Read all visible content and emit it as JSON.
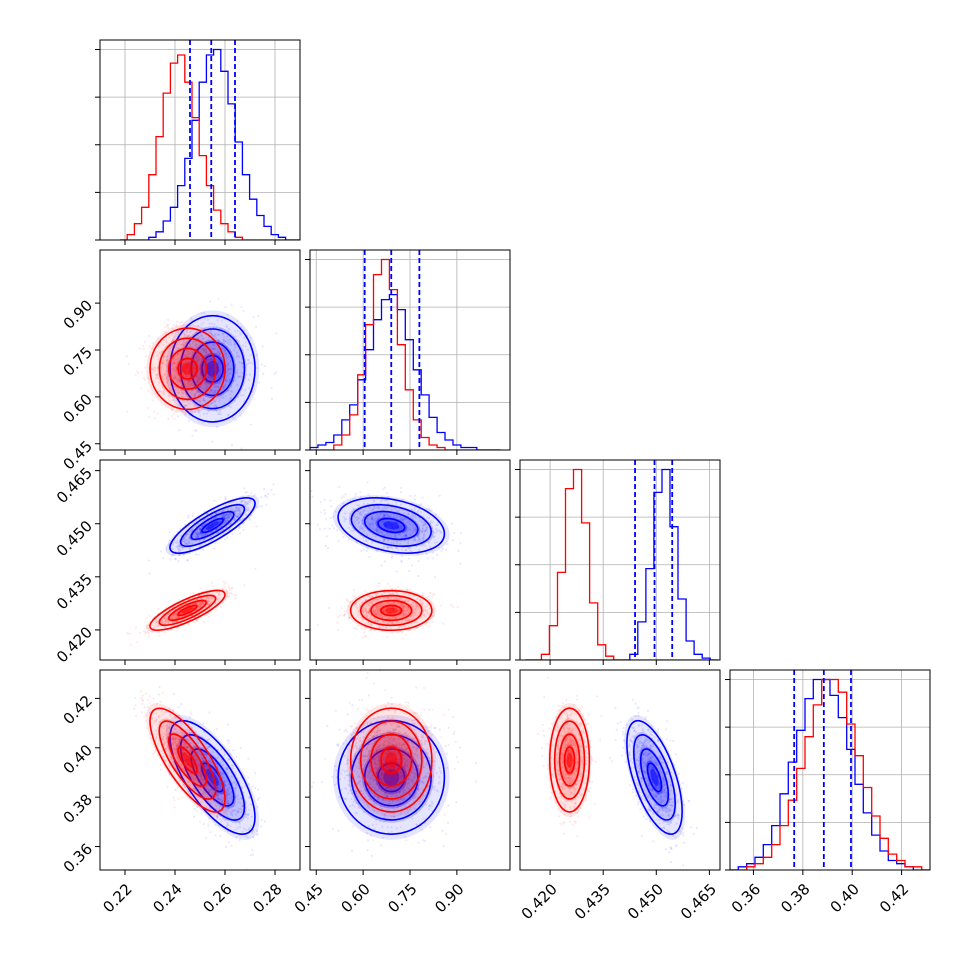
{
  "chart_data": {
    "type": "corner",
    "grid": true,
    "colors": {
      "series_a": "#0000ff",
      "series_b": "#ff0000",
      "grid": "#b0b0b0",
      "frame": "#000000"
    },
    "series_names": [
      "blue",
      "red"
    ],
    "parameters": [
      {
        "range": [
          0.21,
          0.29
        ],
        "ticks": [
          0.22,
          0.24,
          0.26,
          0.28
        ],
        "tick_labels": [
          "0.22",
          "0.24",
          "0.26",
          "0.28"
        ]
      },
      {
        "range": [
          0.43,
          1.07
        ],
        "ticks": [
          0.45,
          0.6,
          0.75,
          0.9
        ],
        "tick_labels": [
          "0.45",
          "0.60",
          "0.75",
          "0.90"
        ]
      },
      {
        "range": [
          0.4115,
          0.468
        ],
        "ticks": [
          0.42,
          0.435,
          0.45,
          0.465
        ],
        "tick_labels": [
          "0.420",
          "0.435",
          "0.450",
          "0.465"
        ]
      },
      {
        "range": [
          0.3505,
          0.4315
        ],
        "ticks": [
          0.36,
          0.38,
          0.4,
          0.42
        ],
        "tick_labels": [
          "0.36",
          "0.38",
          "0.40",
          "0.42"
        ]
      }
    ],
    "blue": {
      "mean": [
        0.255,
        0.69,
        0.4495,
        0.388
      ],
      "std": [
        0.0085,
        0.085,
        0.0039,
        0.0115
      ],
      "corr": [
        [
          1,
          0,
          0.8,
          -0.7
        ],
        [
          0,
          1,
          -0.3,
          0
        ],
        [
          0.8,
          -0.3,
          1,
          -0.6
        ],
        [
          -0.7,
          0,
          -0.6,
          1
        ]
      ],
      "quantiles": [
        [
          0.246,
          0.2545,
          0.264
        ],
        [
          0.605,
          0.69,
          0.78
        ],
        [
          0.444,
          0.4495,
          0.4545
        ],
        [
          0.3765,
          0.3885,
          0.3995
        ]
      ]
    },
    "red": {
      "mean": [
        0.245,
        0.69,
        0.4255,
        0.395
      ],
      "std": [
        0.0075,
        0.065,
        0.0028,
        0.0105
      ],
      "corr": [
        [
          1,
          0,
          0.8,
          -0.75
        ],
        [
          0,
          1,
          0,
          0
        ],
        [
          0.8,
          0,
          1,
          0
        ],
        [
          -0.75,
          0,
          0,
          1
        ]
      ]
    },
    "histograms": [
      {
        "bins": [
          0.218,
          0.29
        ],
        "blue": [
          0,
          0,
          0,
          0,
          1,
          3,
          7,
          12,
          20,
          30,
          44,
          58,
          68,
          70,
          62,
          50,
          36,
          24,
          15,
          9,
          5,
          2,
          1,
          0,
          0
        ],
        "red": [
          0,
          2,
          6,
          12,
          24,
          38,
          54,
          65,
          68,
          58,
          45,
          31,
          20,
          11,
          6,
          3,
          1,
          0,
          0,
          0,
          0,
          0,
          0,
          0,
          0
        ]
      },
      {
        "bins": [
          0.43,
          1.04
        ],
        "blue": [
          1,
          2,
          3,
          6,
          12,
          18,
          28,
          40,
          52,
          60,
          62,
          56,
          44,
          32,
          22,
          13,
          7,
          4,
          2,
          1,
          1,
          0,
          0,
          0
        ],
        "red": [
          0,
          0,
          0,
          2,
          6,
          14,
          30,
          50,
          70,
          76,
          64,
          42,
          24,
          12,
          5,
          2,
          1,
          0,
          0,
          0,
          0,
          0,
          0,
          0
        ]
      },
      {
        "bins": [
          0.413,
          0.4675
        ],
        "blue": [
          0,
          0,
          0,
          0,
          0,
          0,
          0,
          0,
          0,
          0,
          0,
          0,
          0,
          3,
          20,
          48,
          88,
          100,
          70,
          32,
          10,
          3,
          1,
          0
        ],
        "red": [
          0,
          0,
          3,
          18,
          46,
          90,
          100,
          72,
          30,
          8,
          2,
          0,
          0,
          0,
          0,
          0,
          0,
          0,
          0,
          0,
          0,
          0,
          0,
          0
        ]
      },
      {
        "bins": [
          0.3505,
          0.4315
        ],
        "blue": [
          0,
          1,
          2,
          4,
          8,
          14,
          24,
          34,
          44,
          54,
          60,
          60,
          55,
          48,
          38,
          27,
          18,
          11,
          6,
          3,
          2,
          1,
          0,
          0
        ],
        "red": [
          0,
          0,
          1,
          2,
          4,
          8,
          14,
          22,
          32,
          42,
          52,
          60,
          60,
          56,
          46,
          36,
          26,
          17,
          10,
          5,
          3,
          1,
          1,
          0
        ]
      }
    ]
  }
}
